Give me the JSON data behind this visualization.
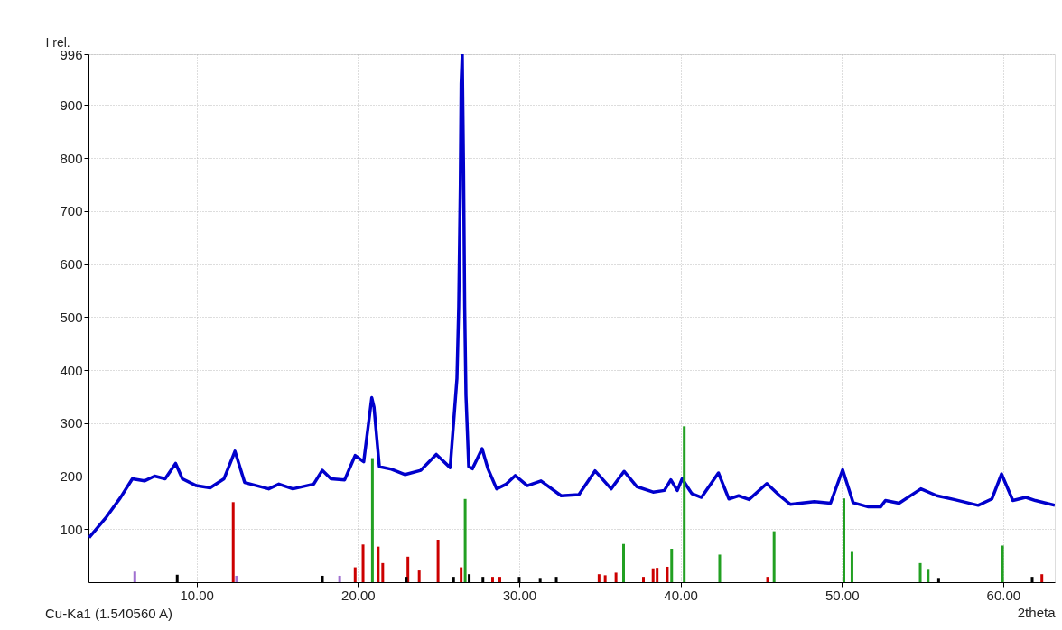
{
  "chart_data": {
    "type": "line",
    "xlabel": "2theta",
    "ylabel": "I rel.",
    "annotations": [
      "Cu-Ka1 (1.540560 A)"
    ],
    "xlim": [
      3.3,
      63.2
    ],
    "ylim": [
      0,
      996
    ],
    "xticks": [
      {
        "value": 10,
        "label": "10.00"
      },
      {
        "value": 20,
        "label": "20.00"
      },
      {
        "value": 30,
        "label": "30.00"
      },
      {
        "value": 40,
        "label": "40.00"
      },
      {
        "value": 50,
        "label": "50.00"
      },
      {
        "value": 60,
        "label": "60.00"
      }
    ],
    "yticks": [
      100,
      200,
      300,
      400,
      500,
      600,
      700,
      800,
      900,
      996
    ],
    "grid": true,
    "series": [
      {
        "color": "#0000cc",
        "line_style": "solid",
        "x": [
          3.34,
          4.41,
          5.27,
          6.02,
          6.77,
          7.4,
          8.05,
          8.7,
          9.12,
          9.98,
          10.84,
          11.7,
          12.38,
          12.98,
          14.47,
          15.1,
          15.97,
          17.26,
          17.79,
          18.33,
          19.18,
          19.83,
          20.36,
          20.86,
          21.0,
          21.33,
          22.08,
          22.93,
          23.9,
          24.86,
          25.72,
          26.14,
          26.25,
          26.35,
          26.4,
          26.47,
          26.55,
          26.62,
          26.7,
          26.87,
          27.1,
          27.7,
          28.06,
          28.6,
          29.2,
          29.75,
          30.5,
          31.35,
          32.6,
          33.7,
          34.7,
          35.7,
          36.5,
          37.3,
          38.3,
          39.0,
          39.4,
          39.8,
          40.1,
          40.7,
          41.3,
          42.35,
          43.0,
          43.6,
          44.25,
          45.35,
          46.15,
          46.8,
          48.3,
          49.3,
          50.05,
          50.7,
          51.65,
          52.4,
          52.7,
          53.55,
          54.9,
          55.9,
          56.95,
          58.45,
          59.3,
          59.9,
          60.6,
          61.4,
          62.0,
          63.2
        ],
        "values": [
          84,
          123,
          159,
          195,
          191,
          200,
          195,
          224,
          195,
          182,
          178,
          195,
          247,
          188,
          176,
          185,
          176,
          185,
          211,
          195,
          193,
          239,
          227,
          348,
          330,
          218,
          213,
          203,
          211,
          241,
          216,
          384,
          520,
          750,
          940,
          996,
          780,
          520,
          352,
          218,
          214,
          252,
          214,
          176,
          185,
          201,
          182,
          191,
          163,
          165,
          210,
          176,
          209,
          180,
          170,
          173,
          193,
          173,
          195,
          167,
          160,
          206,
          157,
          163,
          156,
          186,
          163,
          147,
          152,
          149,
          212,
          150,
          142,
          142,
          154,
          149,
          176,
          163,
          156,
          145,
          157,
          204,
          154,
          160,
          154,
          145
        ]
      },
      {
        "type": "bar",
        "color": "#22a022",
        "x": [
          20.9,
          26.65,
          36.47,
          39.45,
          40.23,
          42.43,
          45.8,
          50.13,
          50.63,
          54.86,
          55.35,
          59.96
        ],
        "values": [
          234,
          157,
          72,
          63,
          294,
          52,
          96,
          158,
          57,
          36,
          25,
          69
        ]
      },
      {
        "type": "bar",
        "color": "#cc0000",
        "x": [
          12.27,
          19.83,
          20.32,
          21.26,
          21.54,
          23.1,
          23.8,
          24.97,
          26.4,
          28.35,
          28.8,
          34.95,
          35.33,
          36.0,
          37.7,
          38.3,
          38.55,
          39.18,
          45.4,
          62.4
        ],
        "values": [
          151,
          28,
          71,
          67,
          36,
          48,
          22,
          80,
          28,
          10,
          10,
          15,
          13,
          18,
          10,
          26,
          27,
          29,
          10,
          15
        ]
      },
      {
        "type": "bar",
        "color": "#000000",
        "x": [
          8.8,
          17.8,
          23.0,
          25.93,
          26.9,
          27.75,
          30.0,
          31.3,
          32.3,
          56.0,
          61.8
        ],
        "values": [
          14,
          12,
          10,
          10,
          15,
          10,
          10,
          8,
          10,
          8,
          10
        ]
      },
      {
        "type": "bar",
        "color": "#a070d0",
        "x": [
          6.17,
          12.48,
          18.87
        ],
        "values": [
          20,
          12,
          12
        ]
      }
    ]
  }
}
